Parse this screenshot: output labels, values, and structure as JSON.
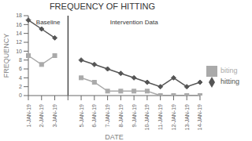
{
  "chart_data": {
    "type": "line",
    "title": "FREQUENCY OF HITTING",
    "xlabel": "DATE",
    "ylabel": "FREQUENCY",
    "annotations": [
      "Baseline",
      "Intervention Data"
    ],
    "categories": [
      "1-JAN-19",
      "2-JAN-19",
      "3-JAN-19",
      null,
      "5-JAN-19",
      "6-JAN-19",
      "7-JAN-19",
      "8-JAN-19",
      "9-JAN-19",
      "10-JAN-19",
      "11-JAN-19",
      "12-JAN-19",
      "13-JAN-19",
      "14-JAN-19"
    ],
    "series": [
      {
        "name": "hitting",
        "color": "#555555",
        "marker": "diamond",
        "values": [
          17,
          15,
          13,
          null,
          8,
          7,
          6,
          5,
          4,
          3,
          2,
          4,
          2,
          3
        ]
      },
      {
        "name": "biting",
        "color": "#aaaaaa",
        "marker": "square",
        "values": [
          9,
          7,
          9,
          null,
          4,
          3,
          1,
          1,
          1,
          1,
          0,
          0,
          0,
          0
        ]
      }
    ],
    "ylim": [
      0,
      18
    ],
    "yticks": [
      0,
      2,
      4,
      6,
      8,
      10,
      12,
      14,
      16,
      18
    ],
    "grid": false,
    "legend": "right"
  }
}
